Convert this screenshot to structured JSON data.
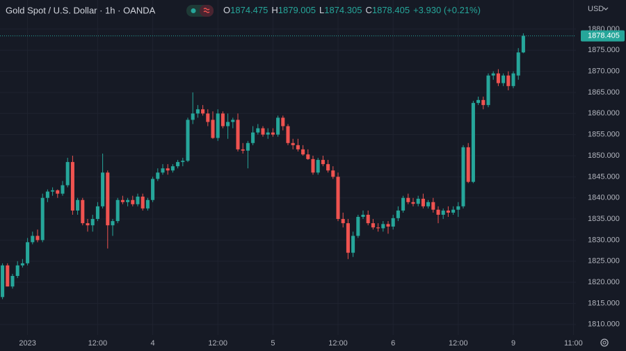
{
  "chart_data": {
    "type": "candlestick",
    "title": "Gold Spot / U.S. Dollar · 1h · OANDA",
    "ohlc_labels": [
      "O",
      "H",
      "L",
      "C"
    ],
    "change": "+3.930 (+0.21%)",
    "currency": "USD",
    "up_color": "#26a69a",
    "down_color": "#ef5350",
    "grid": true,
    "open": [
      1816.5,
      1824,
      1819,
      1821.5,
      1824,
      1824.5,
      1829.5,
      1831,
      1830,
      1840,
      1841.5,
      1841.8,
      1841,
      1843,
      1848.5,
      1837,
      1839.5,
      1834,
      1833.5,
      1835,
      1838,
      1846,
      1833.5,
      1834.5,
      1839.5,
      1839,
      1839.5,
      1838.5,
      1840.3,
      1837.5,
      1839.5,
      1844.5,
      1846,
      1847,
      1846.5,
      1847.5,
      1848.5,
      1848.8,
      1858.5,
      1860,
      1861,
      1860,
      1858.5,
      1854.2,
      1860,
      1857,
      1858,
      1858.5,
      1851.5,
      1851.2,
      1853,
      1855.5,
      1856.5,
      1855,
      1855.5,
      1855,
      1859,
      1857,
      1853,
      1852.5,
      1851.5,
      1850.3,
      1849.2,
      1846,
      1849,
      1848,
      1846.5,
      1845,
      1835,
      1834,
      1827,
      1831,
      1835.5,
      1836,
      1834,
      1833,
      1832.8,
      1833.8,
      1833.2,
      1835.2,
      1837,
      1840,
      1839,
      1838.6,
      1839.8,
      1838,
      1839,
      1837.2,
      1836,
      1837,
      1836.5,
      1837.2,
      1838,
      1852,
      1843.8,
      1862.5,
      1863.2,
      1862,
      1869,
      1869.5,
      1867.2,
      1869,
      1866.5,
      1869,
      1874.475
    ],
    "high": [
      1824.5,
      1824.5,
      1822,
      1825,
      1825.5,
      1830.5,
      1832,
      1832.5,
      1841,
      1842,
      1842.5,
      1842,
      1844,
      1849.5,
      1850,
      1840,
      1840,
      1835,
      1836,
      1839,
      1850.5,
      1846.5,
      1835,
      1840,
      1840.5,
      1840,
      1840.5,
      1841,
      1841,
      1840,
      1845,
      1847,
      1848,
      1848,
      1848,
      1849,
      1849.5,
      1859,
      1865,
      1862,
      1862,
      1861,
      1860.5,
      1861,
      1860.5,
      1860,
      1859,
      1860,
      1853,
      1853.5,
      1857,
      1857.5,
      1857,
      1856.5,
      1856.5,
      1859.5,
      1859.5,
      1857.5,
      1854,
      1854,
      1852.5,
      1851.5,
      1850,
      1849.5,
      1850,
      1849,
      1847.5,
      1846,
      1836.5,
      1835,
      1832,
      1836,
      1837,
      1837,
      1835,
      1834,
      1834.5,
      1834.5,
      1836,
      1838,
      1840.5,
      1841,
      1840,
      1840.5,
      1841,
      1839.5,
      1840,
      1838,
      1837.5,
      1838,
      1838,
      1839,
      1852.5,
      1853,
      1863,
      1864,
      1864,
      1869.5,
      1870,
      1870.5,
      1869.5,
      1870,
      1870,
      1875.5,
      1879.005
    ],
    "low": [
      1816,
      1819,
      1818.5,
      1821,
      1823.5,
      1824,
      1829,
      1829.5,
      1829.5,
      1839,
      1840.5,
      1840,
      1840.5,
      1842.5,
      1836,
      1836,
      1833.5,
      1832,
      1832,
      1834.5,
      1837.5,
      1828,
      1831,
      1834,
      1838.5,
      1838,
      1838,
      1838,
      1837,
      1837,
      1839,
      1844,
      1845.5,
      1845.5,
      1846,
      1847,
      1847.5,
      1848.5,
      1857.5,
      1859,
      1859.5,
      1857,
      1854,
      1853.5,
      1856.5,
      1854,
      1856.5,
      1851,
      1850.5,
      1847,
      1852.5,
      1855,
      1854.5,
      1854,
      1854.5,
      1854.5,
      1856,
      1852.5,
      1851.5,
      1851,
      1850,
      1849,
      1845.5,
      1845.5,
      1847.5,
      1846,
      1844.5,
      1834.5,
      1833,
      1825.5,
      1826,
      1830.5,
      1835,
      1833.5,
      1832.5,
      1832,
      1832,
      1831.5,
      1832.5,
      1834.5,
      1836.5,
      1838.5,
      1838,
      1838,
      1837.5,
      1837.5,
      1836.5,
      1834,
      1835,
      1835.5,
      1836,
      1835.5,
      1837.5,
      1843.5,
      1843.5,
      1862,
      1861,
      1861.5,
      1868,
      1866.5,
      1866.5,
      1865.5,
      1866,
      1868,
      1874.305
    ],
    "close": [
      1824,
      1819,
      1821.5,
      1824,
      1824.5,
      1829.5,
      1831,
      1830,
      1840,
      1841.5,
      1841.8,
      1841,
      1843,
      1848.5,
      1837,
      1839.5,
      1834,
      1833.5,
      1835,
      1838,
      1846,
      1833.5,
      1834.5,
      1839.5,
      1839,
      1839.5,
      1838.5,
      1840.3,
      1837.5,
      1839.5,
      1844.5,
      1846,
      1847,
      1846.5,
      1847.5,
      1848.5,
      1848.8,
      1858.5,
      1860,
      1861,
      1860,
      1858,
      1854.2,
      1860,
      1857,
      1858,
      1858.5,
      1851.5,
      1851.2,
      1853,
      1855.5,
      1856.5,
      1855,
      1855.5,
      1855,
      1859,
      1857,
      1853,
      1852.5,
      1851.5,
      1850.3,
      1849.2,
      1846,
      1849,
      1848,
      1846.5,
      1845,
      1835,
      1834,
      1827,
      1831,
      1835.5,
      1836,
      1834,
      1833,
      1832.8,
      1833.8,
      1833.2,
      1835.2,
      1837,
      1840,
      1839,
      1838.6,
      1839.8,
      1838,
      1839,
      1837.2,
      1836,
      1837,
      1836.5,
      1837.2,
      1838,
      1852,
      1843.8,
      1862.5,
      1863.2,
      1862,
      1869,
      1869.5,
      1867.2,
      1869,
      1866.5,
      1869.5,
      1874.475,
      1878.405
    ],
    "xlim": [
      -0.5,
      114.5
    ],
    "xticks": [
      {
        "value": 5,
        "label": "2023"
      },
      {
        "value": 19,
        "label": "12:00"
      },
      {
        "value": 30,
        "label": "4"
      },
      {
        "value": 43,
        "label": "12:00"
      },
      {
        "value": 54,
        "label": "5"
      },
      {
        "value": 67,
        "label": "12:00"
      },
      {
        "value": 78,
        "label": "6"
      },
      {
        "value": 91,
        "label": "12:00"
      },
      {
        "value": 102,
        "label": "9"
      },
      {
        "value": 114,
        "label": "11:00"
      }
    ],
    "ylim": [
      1807.5,
      1886.9
    ],
    "yticks": [
      {
        "value": 1810,
        "label": "1810.000"
      },
      {
        "value": 1815,
        "label": "1815.000"
      },
      {
        "value": 1820,
        "label": "1820.000"
      },
      {
        "value": 1825,
        "label": "1825.000"
      },
      {
        "value": 1830,
        "label": "1830.000"
      },
      {
        "value": 1835,
        "label": "1835.000"
      },
      {
        "value": 1840,
        "label": "1840.000"
      },
      {
        "value": 1845,
        "label": "1845.000"
      },
      {
        "value": 1850,
        "label": "1850.000"
      },
      {
        "value": 1855,
        "label": "1855.000"
      },
      {
        "value": 1860,
        "label": "1860.000"
      },
      {
        "value": 1865,
        "label": "1865.000"
      },
      {
        "value": 1870,
        "label": "1870.000"
      },
      {
        "value": 1875,
        "label": "1875.000"
      },
      {
        "value": 1880,
        "label": "1880.000"
      }
    ]
  }
}
